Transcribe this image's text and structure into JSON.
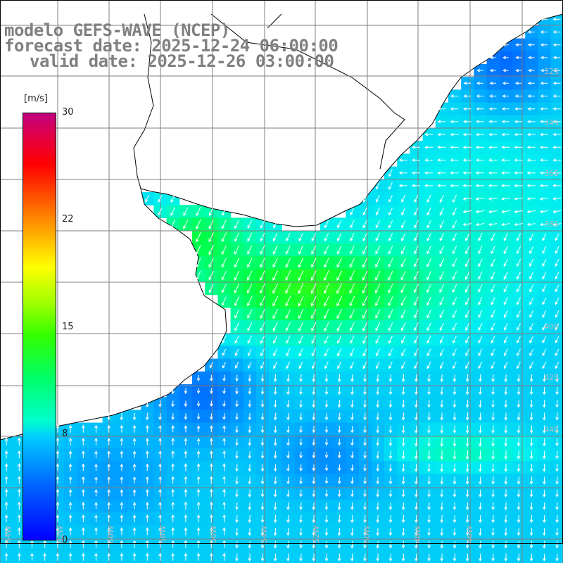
{
  "titles": {
    "model": "modelo GEFS-WAVE (NCEP)",
    "forecast": "forecast date: 2025-12-24 06:00:00",
    "valid": "valid date: 2025-12-26 03:00:00"
  },
  "colorbar": {
    "unit": "[m/s]",
    "ticks": [
      "30",
      "22",
      "15",
      "8",
      "0"
    ],
    "range": [
      0,
      30
    ]
  },
  "grid_labels": {
    "lat": [
      "32S",
      "34S",
      "36S",
      "38S",
      "40S",
      "42S",
      "44S"
    ],
    "lon": [
      "64W",
      "62W",
      "60W",
      "58W",
      "56W",
      "54W",
      "52W",
      "50W",
      "48W",
      "46W"
    ]
  },
  "colors": {
    "land": "#ffffff",
    "grid": "#7f7f7f",
    "arrows": "#ffffff",
    "coast": "#000000"
  }
}
